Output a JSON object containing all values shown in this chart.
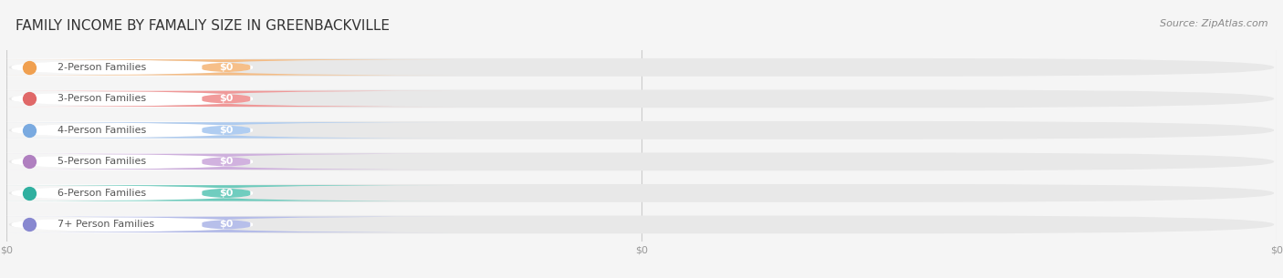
{
  "title": "FAMILY INCOME BY FAMALIY SIZE IN GREENBACKVILLE",
  "source": "Source: ZipAtlas.com",
  "categories": [
    "2-Person Families",
    "3-Person Families",
    "4-Person Families",
    "5-Person Families",
    "6-Person Families",
    "7+ Person Families"
  ],
  "values": [
    0,
    0,
    0,
    0,
    0,
    0
  ],
  "bar_colors": [
    "#f5b87c",
    "#f09090",
    "#a8c8f0",
    "#ccaadc",
    "#60c8b8",
    "#b0b8e8"
  ],
  "dot_colors": [
    "#f0a050",
    "#e06868",
    "#7aaae0",
    "#b080c0",
    "#30b0a0",
    "#8888d0"
  ],
  "value_labels": [
    "$0",
    "$0",
    "$0",
    "$0",
    "$0",
    "$0"
  ],
  "x_tick_positions": [
    0.0,
    0.5,
    1.0
  ],
  "x_tick_labels": [
    "$0",
    "$0",
    "$0"
  ],
  "bg_color": "#f5f5f5",
  "bar_bg_color": "#e8e8e8",
  "white_pill_color": "#ffffff",
  "title_fontsize": 11,
  "source_fontsize": 8,
  "label_fontsize": 8,
  "value_fontsize": 8
}
